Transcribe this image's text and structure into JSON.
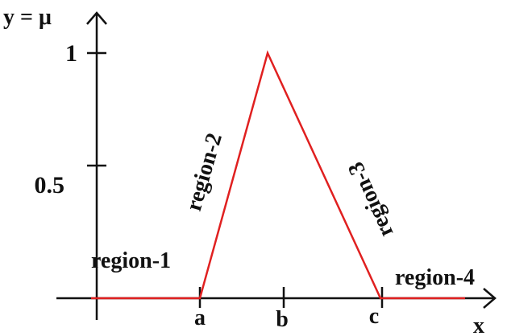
{
  "figure": {
    "y_axis_label": "y = μ",
    "x_axis_label": "x",
    "y_ticks": [
      "1",
      "0.5"
    ],
    "x_ticks": [
      "a",
      "b",
      "c"
    ],
    "regions": [
      "region-1",
      "region-2",
      "region-3",
      "region-4"
    ]
  },
  "colors": {
    "axis": "#111111",
    "curve": "#e02020",
    "text": "#111111"
  }
}
